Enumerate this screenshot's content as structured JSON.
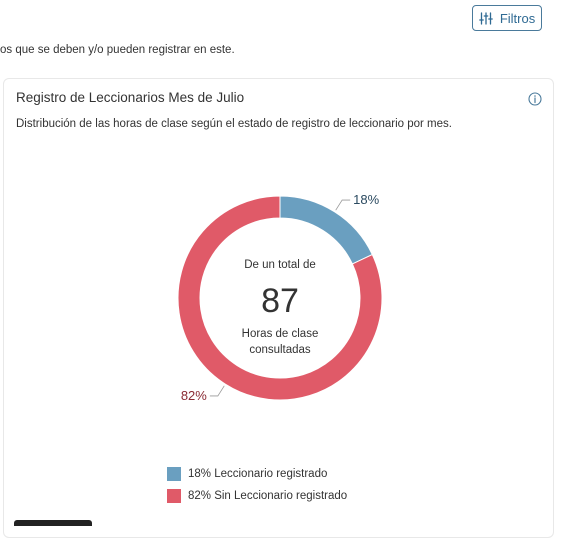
{
  "toolbar": {
    "filters_label": "Filtros"
  },
  "intro": {
    "text": "os que se deben y/o pueden registrar en este."
  },
  "card": {
    "title": "Registro de Leccionarios Mes de Julio",
    "description": "Distribución de las horas de clase según el estado de registro de leccionario por mes."
  },
  "colors": {
    "registered": "#6a9fc0",
    "unregistered": "#e05a68",
    "accent": "#2f6a93"
  },
  "chart_data": {
    "type": "pie",
    "variant": "donut",
    "center": {
      "top_label": "De un total de",
      "value": "87",
      "bottom_label_1": "Horas de clase",
      "bottom_label_2": "consultadas"
    },
    "slices": [
      {
        "label": "18% Leccionario registrado",
        "percent": 18,
        "data_label": "18%",
        "color": "#6a9fc0"
      },
      {
        "label": "82% Sin Leccionario registrado",
        "percent": 82,
        "data_label": "82%",
        "color": "#e05a68"
      }
    ]
  }
}
